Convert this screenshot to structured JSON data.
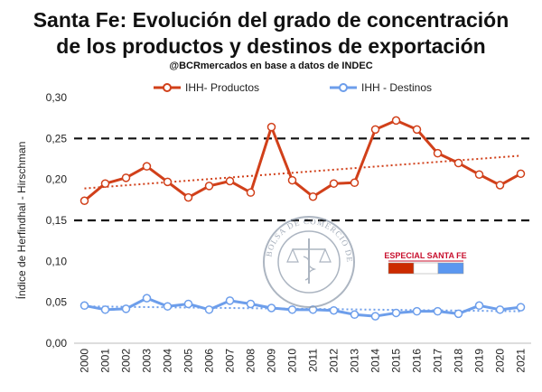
{
  "chart_data": {
    "type": "line",
    "title_line1": "Santa Fe: Evolución del grado de concentración",
    "title_line2": "de los productos y destinos de exportación",
    "subtitle": "@BCRmercados en base a datos de INDEC",
    "ylabel": "Índice de Herfindhal - Hirschman",
    "ylim": [
      0,
      0.3
    ],
    "yticks": [
      "0,00",
      "0,05",
      "0,10",
      "0,15",
      "0,20",
      "0,25",
      "0,30"
    ],
    "categories": [
      "2000",
      "2001",
      "2002",
      "2003",
      "2004",
      "2005",
      "2006",
      "2007",
      "2008",
      "2009",
      "2010",
      "2011",
      "2012",
      "2013",
      "2014",
      "2015",
      "2016",
      "2017",
      "2018",
      "2019",
      "2020",
      "2021"
    ],
    "series": [
      {
        "name": "IHH- Productos",
        "color": "#d1401a",
        "values": [
          0.174,
          0.195,
          0.202,
          0.216,
          0.197,
          0.178,
          0.192,
          0.198,
          0.184,
          0.264,
          0.199,
          0.179,
          0.195,
          0.196,
          0.261,
          0.272,
          0.261,
          0.232,
          0.22,
          0.206,
          0.193,
          0.207
        ],
        "trend": [
          0.189,
          0.229
        ]
      },
      {
        "name": "IHH - Destinos",
        "color": "#6d9eeb",
        "values": [
          0.046,
          0.041,
          0.042,
          0.055,
          0.045,
          0.048,
          0.041,
          0.052,
          0.048,
          0.043,
          0.041,
          0.041,
          0.04,
          0.035,
          0.033,
          0.037,
          0.039,
          0.039,
          0.036,
          0.046,
          0.041,
          0.044
        ],
        "trend": [
          0.045,
          0.039
        ]
      }
    ],
    "reference_lines": [
      0.15,
      0.25
    ],
    "legend_position": "top"
  },
  "badge": {
    "label": "ESPECIAL SANTA FE",
    "colors": [
      "#cc2b00",
      "#ffffff",
      "#5b97f0"
    ]
  },
  "seal": {
    "text": "BOLSA DE COMERCIO DE ROSARIO"
  },
  "colors": {
    "reference": "#111111",
    "grid": "#000000"
  }
}
